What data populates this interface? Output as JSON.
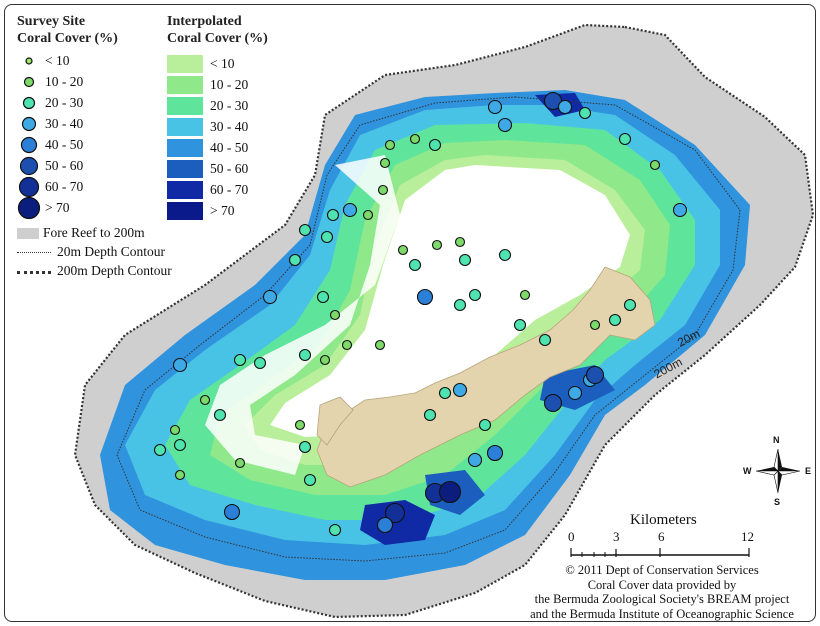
{
  "legend_survey": {
    "title_line1": "Survey Site",
    "title_line2": "Coral Cover (%)",
    "items": [
      "< 10",
      "10 - 20",
      "20 - 30",
      "30 - 40",
      "40 - 50",
      "50 - 60",
      "60 - 70",
      "> 70"
    ]
  },
  "legend_interp": {
    "title_line1": "Interpolated",
    "title_line2": "Coral Cover (%)",
    "items": [
      "< 10",
      "10 - 20",
      "20 - 30",
      "30 - 40",
      "40 - 50",
      "50 - 60",
      "60 - 70",
      "> 70"
    ]
  },
  "legend_other": {
    "fore_reef": "Fore Reef to 200m",
    "contour20": "20m Depth Contour",
    "contour200": "200m Depth Contour"
  },
  "colors": {
    "interp": [
      "#b9ef9a",
      "#8fe98a",
      "#5fe49c",
      "#48c3e6",
      "#2f93dd",
      "#1b5ebd",
      "#0f2aa4",
      "#0a1a8a"
    ],
    "fore_reef": "#cfcfcf",
    "land": "#e3d4ad",
    "site_fill": [
      "#9be36b",
      "#7cd96a",
      "#4fe3b0",
      "#3fa9e6",
      "#2c7fd6",
      "#1c4fae",
      "#123096",
      "#0b1e7e"
    ]
  },
  "depth_labels": {
    "d20": "20m",
    "d200": "200m"
  },
  "scale": {
    "title": "Kilometers",
    "ticks": [
      "0",
      "3",
      "6",
      "12"
    ]
  },
  "compass": {
    "n": "N",
    "s": "S",
    "e": "E",
    "w": "W"
  },
  "credit": [
    "© 2011 Dept of Conservation Services",
    "Coral Cover data provided by",
    "the Bermuda Zoological Society's BREAM project",
    "and the Bermuda Institute of Oceanographic Science (BIOS)"
  ]
}
